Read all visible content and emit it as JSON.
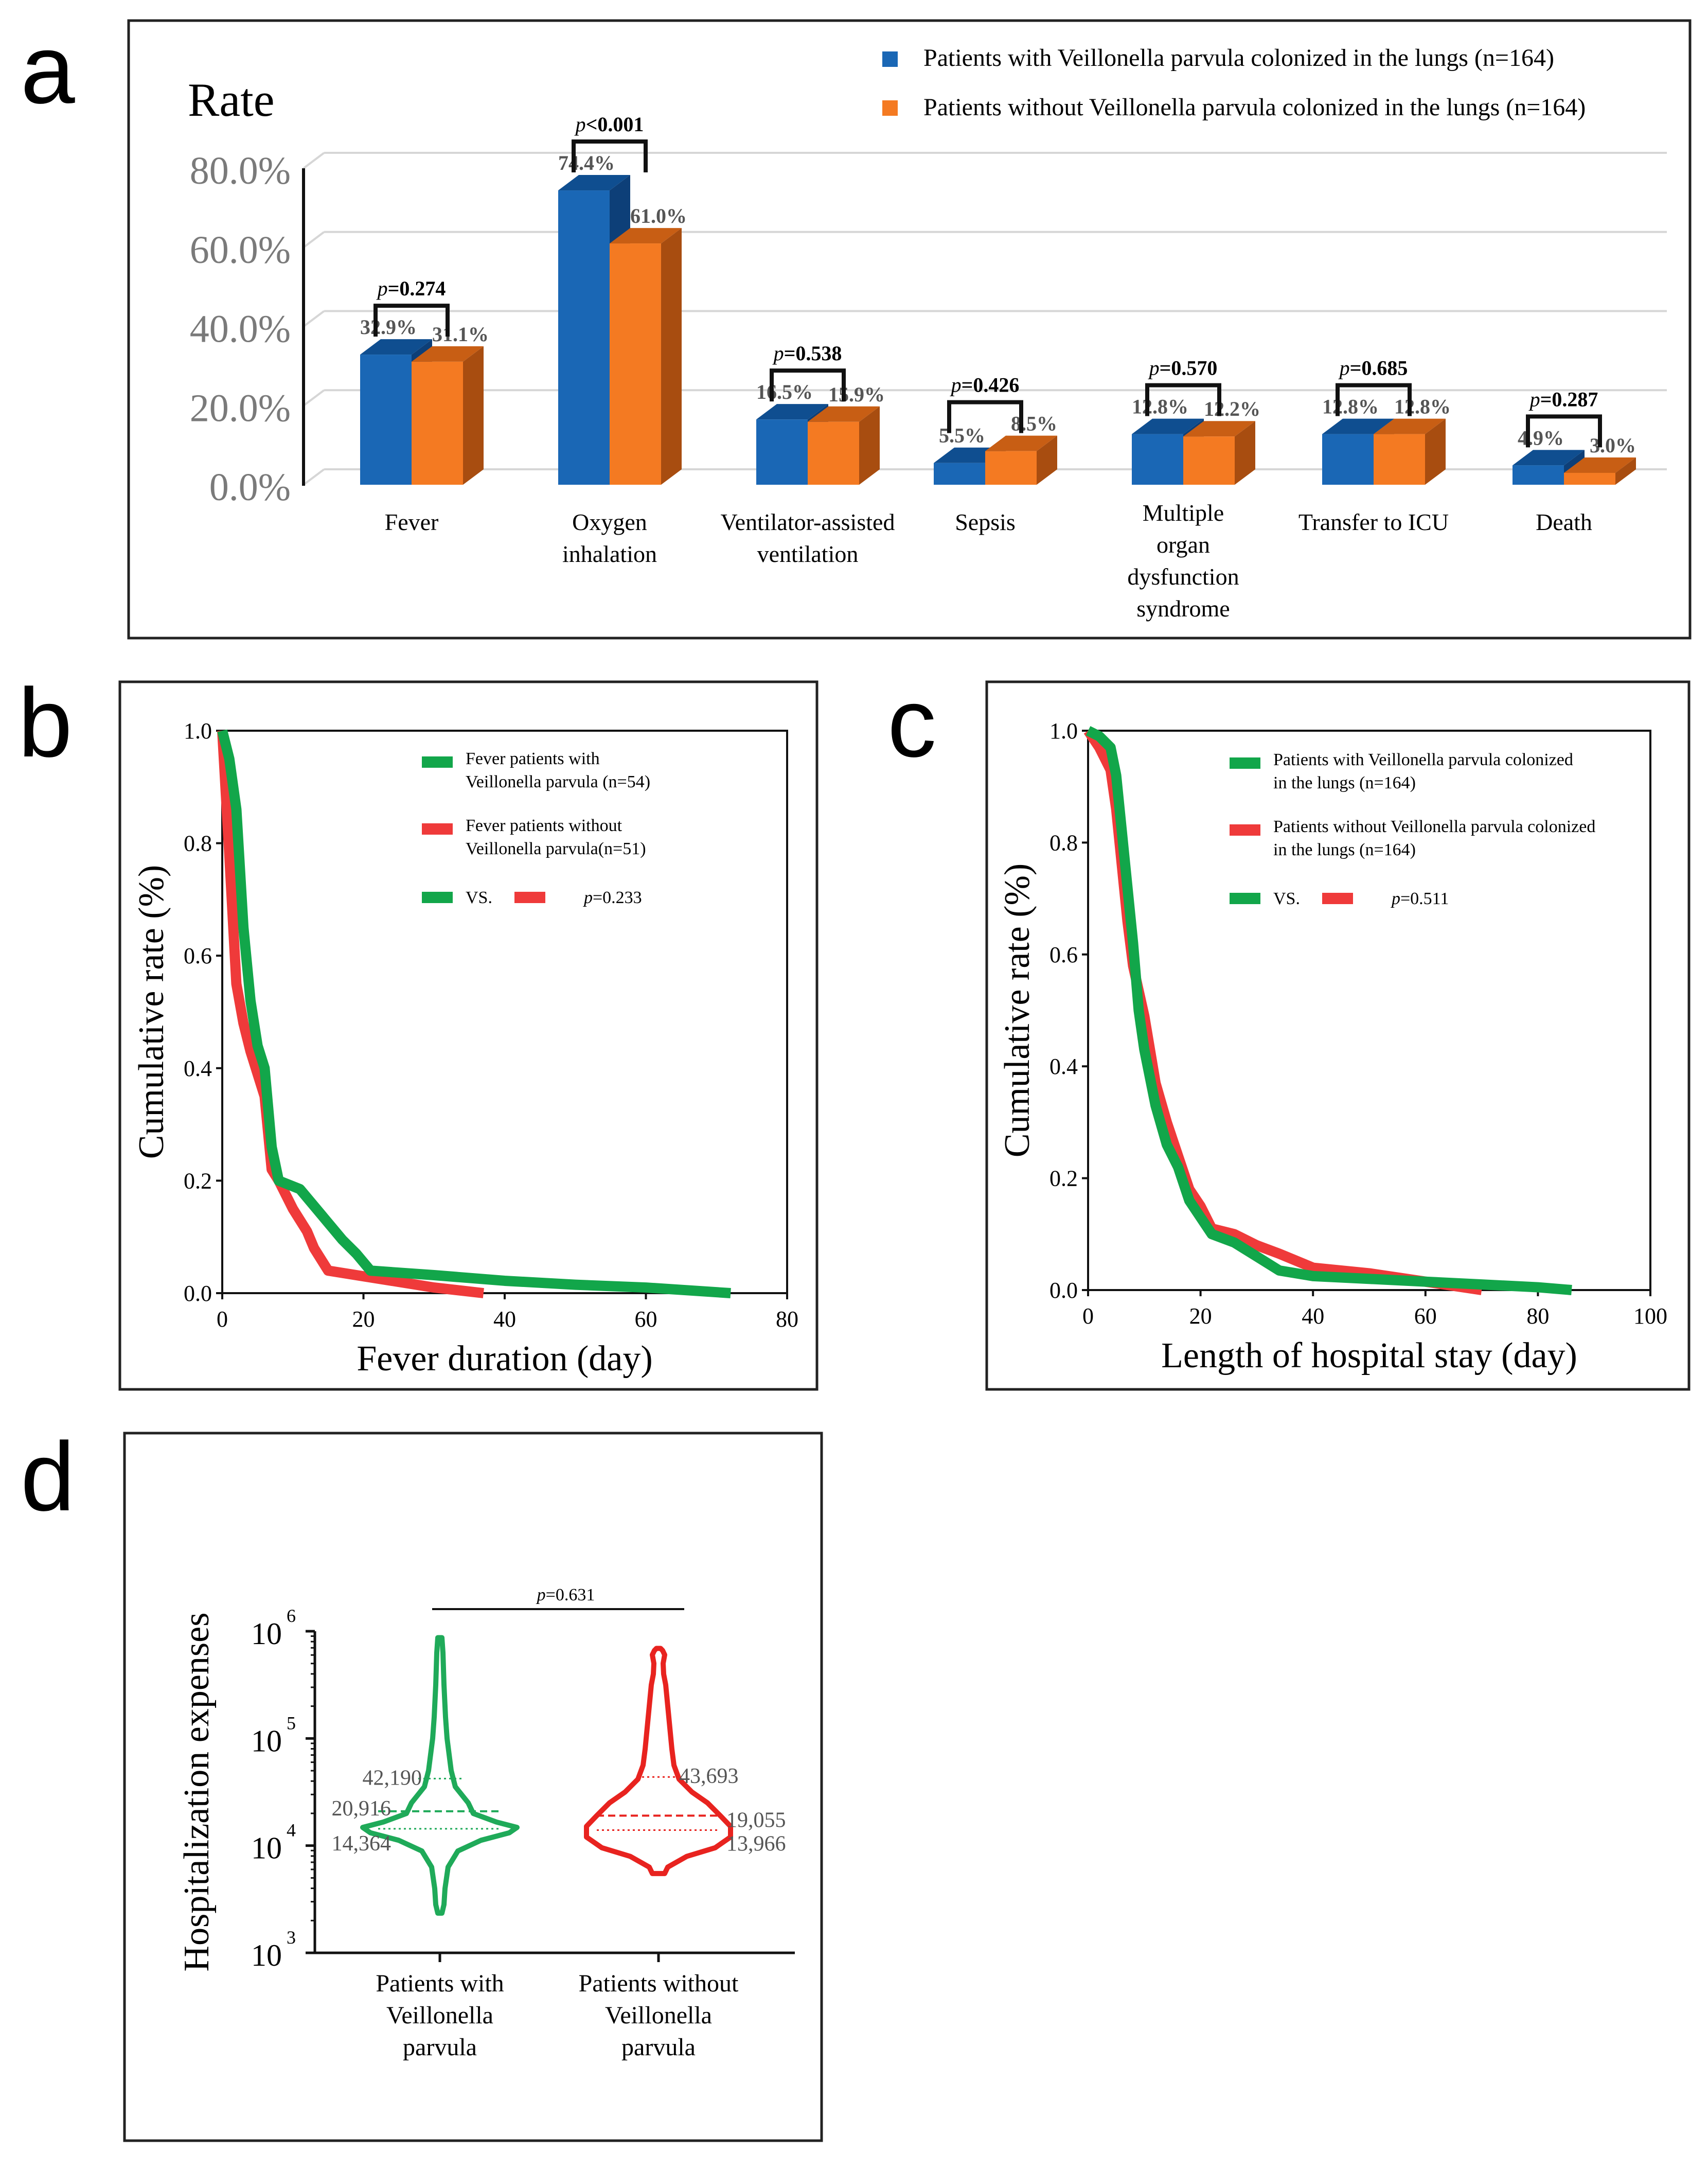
{
  "colors": {
    "with": "#1a67b5",
    "with_top": "#0f4e90",
    "with_side": "#0d3f78",
    "without": "#f47a22",
    "without_top": "#c85e14",
    "without_side": "#a84d10",
    "km_with": "#12a64a",
    "km_without": "#ef3a3a",
    "violin_with": "#1faa59",
    "violin_without": "#e8231f",
    "axis_text": "#7a7a7a"
  },
  "chart_data": [
    {
      "panel": "a",
      "type": "bar",
      "ylabel": "Rate",
      "ylim": [
        0,
        80
      ],
      "yticks": [
        "80.0%",
        "60.0%",
        "40.0%",
        "20.0%",
        "0.0%"
      ],
      "legend": [
        "Patients with Veillonella parvula colonized in the lungs (n=164)",
        "Patients without Veillonella parvula colonized in the lungs (n=164)"
      ],
      "categories": [
        [
          "Fever"
        ],
        [
          "Oxygen",
          "inhalation"
        ],
        [
          "Ventilator-assisted",
          "ventilation"
        ],
        [
          "Sepsis"
        ],
        [
          "Multiple",
          "organ",
          "dysfunction",
          "syndrome"
        ],
        [
          "Transfer to ICU"
        ],
        [
          "Death"
        ]
      ],
      "series": [
        {
          "name": "with",
          "values": [
            32.9,
            74.4,
            16.5,
            5.5,
            12.8,
            12.8,
            4.9
          ],
          "labels": [
            "32.9%",
            "74.4%",
            "16.5%",
            "5.5%",
            "12.8%",
            "12.8%",
            "4.9%"
          ]
        },
        {
          "name": "without",
          "values": [
            31.1,
            61.0,
            15.9,
            8.5,
            12.2,
            12.8,
            3.0
          ],
          "labels": [
            "31.1%",
            "61.0%",
            "15.9%",
            "8.5%",
            "12.2%",
            "12.8%",
            "3.0%"
          ]
        }
      ],
      "pvalues": [
        {
          "p": "p",
          "rest": "=0.274"
        },
        {
          "p": "p",
          "rest": "<0.001"
        },
        {
          "p": "p",
          "rest": "=0.538"
        },
        {
          "p": "p",
          "rest": "=0.426"
        },
        {
          "p": "p",
          "rest": "=0.570"
        },
        {
          "p": "p",
          "rest": "=0.685"
        },
        {
          "p": "p",
          "rest": "=0.287"
        }
      ]
    },
    {
      "panel": "b",
      "type": "line",
      "xlabel": "Fever duration (day)",
      "ylabel": "Cumulative rate (%)",
      "xlim": [
        0,
        80
      ],
      "ylim": [
        0,
        1
      ],
      "xticks": [
        "0",
        "20",
        "40",
        "60",
        "80"
      ],
      "yticks": [
        "0.0",
        "0.2",
        "0.4",
        "0.6",
        "0.8",
        "1.0"
      ],
      "legend": [
        [
          "Fever patients with",
          "Veillonella parvula (n=54)"
        ],
        [
          "Fever patients without",
          "Veillonella parvula(n=51)"
        ]
      ],
      "vs_label": "VS.",
      "p_label": "p",
      "p_value": "=0.233",
      "series": [
        {
          "name": "with",
          "x": [
            0,
            1,
            2,
            3,
            4,
            5,
            6,
            7,
            8,
            11,
            14,
            17,
            19,
            21,
            30,
            40,
            50,
            60,
            72
          ],
          "y": [
            1.0,
            0.95,
            0.86,
            0.65,
            0.52,
            0.44,
            0.4,
            0.26,
            0.2,
            0.185,
            0.14,
            0.095,
            0.07,
            0.04,
            0.032,
            0.022,
            0.015,
            0.01,
            0.0
          ]
        },
        {
          "name": "without",
          "x": [
            0,
            1,
            2,
            3,
            4,
            5,
            6,
            7,
            8,
            10,
            12,
            13,
            15,
            20,
            25,
            30,
            37
          ],
          "y": [
            1.0,
            0.78,
            0.55,
            0.48,
            0.43,
            0.39,
            0.35,
            0.22,
            0.2,
            0.15,
            0.11,
            0.08,
            0.04,
            0.03,
            0.02,
            0.01,
            0.0
          ]
        }
      ]
    },
    {
      "panel": "c",
      "type": "line",
      "xlabel": "Length of hospital stay (day)",
      "ylabel": "Cumulative rate (%)",
      "xlim": [
        0,
        100
      ],
      "ylim": [
        0,
        1
      ],
      "xticks": [
        "0",
        "20",
        "40",
        "60",
        "80",
        "100"
      ],
      "yticks": [
        "0.0",
        "0.2",
        "0.4",
        "0.6",
        "0.8",
        "1.0"
      ],
      "legend": [
        [
          "Patients with Veillonella parvula colonized",
          " in the lungs (n=164)"
        ],
        [
          "Patients without Veillonella parvula colonized",
          " in the lungs (n=164)"
        ]
      ],
      "vs_label": "VS.",
      "p_label": "p",
      "p_value": "=0.511",
      "series": [
        {
          "name": "with",
          "x": [
            0,
            2,
            4,
            5,
            6,
            7,
            8,
            9,
            10,
            12,
            14,
            16,
            18,
            20,
            22,
            26,
            30,
            34,
            40,
            50,
            60,
            70,
            80,
            86
          ],
          "y": [
            1.0,
            0.99,
            0.97,
            0.92,
            0.82,
            0.72,
            0.62,
            0.5,
            0.43,
            0.33,
            0.26,
            0.22,
            0.16,
            0.13,
            0.1,
            0.085,
            0.06,
            0.035,
            0.025,
            0.02,
            0.015,
            0.01,
            0.005,
            0.0
          ]
        },
        {
          "name": "without",
          "x": [
            0,
            2,
            4,
            5,
            6,
            7,
            8,
            10,
            12,
            14,
            16,
            18,
            20,
            22,
            26,
            30,
            34,
            40,
            50,
            60,
            70
          ],
          "y": [
            1.0,
            0.97,
            0.93,
            0.86,
            0.76,
            0.66,
            0.58,
            0.49,
            0.37,
            0.3,
            0.24,
            0.18,
            0.15,
            0.11,
            0.1,
            0.08,
            0.065,
            0.04,
            0.03,
            0.015,
            0.0
          ]
        }
      ]
    },
    {
      "panel": "d",
      "type": "violin",
      "ylabel": "Hospitalization expenses",
      "yscale": "log",
      "ylim_exp": [
        3,
        6
      ],
      "yticks": [
        "3",
        "4",
        "5",
        "6"
      ],
      "ytick_base": "10",
      "p_label": "p",
      "p_value": "=0.631",
      "groups": [
        {
          "name": [
            "Patients with",
            "Veillonella",
            "parvula"
          ],
          "q3": 42190,
          "median": 20916,
          "q1": 14364,
          "q3_label": "42,190",
          "median_label": "20,916",
          "q1_label": "14,364",
          "min": 2500,
          "max": 870000
        },
        {
          "name": [
            "Patients without",
            "Veillonella",
            "parvula"
          ],
          "q3": 43693,
          "median": 19055,
          "q1": 13966,
          "q3_label": "43,693",
          "median_label": "19,055",
          "q1_label": "13,966",
          "min": 5500,
          "max": 680000
        }
      ]
    }
  ],
  "panel_letters": [
    "a",
    "b",
    "c",
    "d"
  ]
}
